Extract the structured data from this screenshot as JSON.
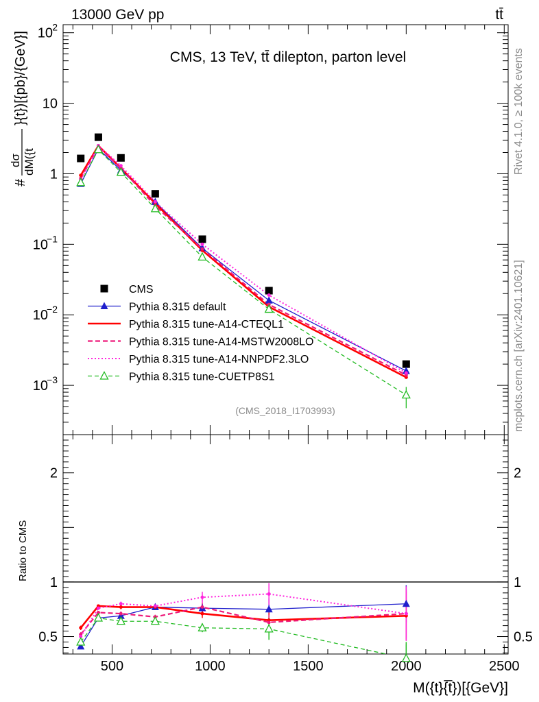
{
  "header": {
    "left": "13000 GeV pp",
    "right": "tt̄"
  },
  "side": {
    "rivet": "Rivet 4.1.0, ≥ 100k events",
    "mcplots": "mcplots.cern.ch [arXiv:2401.10621]"
  },
  "chart_data": {
    "type": "line",
    "title": "CMS, 13 TeV, tt̄ dilepton, parton level",
    "watermark": "(CMS_2018_I1703993)",
    "xlabel": "M({t}{̅t})[{GeV}]",
    "ylabel": "#dσ/dM({t̅}{t})[{pb}/{GeV}]",
    "ylabel_parts": {
      "prefix": "#",
      "num": "dσ",
      "den": "dM({t",
      "den_over": "t",
      "den_tail": "}{t})[{pb}/{GeV}]"
    },
    "ratio_ylabel": "Ratio to CMS",
    "xlim": [
      250,
      2520
    ],
    "ylim": [
      0.0002,
      130
    ],
    "ratio_ylim": [
      0.34,
      2.35
    ],
    "x_ticks": [
      500,
      1000,
      1500,
      2000,
      2500
    ],
    "x_tick_labels": [
      "500",
      "1000",
      "1500",
      "2000",
      "2500"
    ],
    "y_tick_labels": [
      "10^-3",
      "10^-2",
      "10^-1",
      "1",
      "10",
      "10^2"
    ],
    "ratio_ticks": [
      0.5,
      1,
      2
    ],
    "ratio_tick_labels": [
      "0.5",
      "1",
      "2"
    ],
    "x": [
      340,
      430,
      545,
      720,
      960,
      1300,
      2000
    ],
    "series": [
      {
        "name": "CMS",
        "color": "#000000",
        "marker": "square",
        "line": "none",
        "values": [
          1.65,
          3.3,
          1.68,
          0.52,
          0.118,
          0.022,
          0.002
        ]
      },
      {
        "name": "Pythia 8.315 default",
        "color": "#1f1fcc",
        "marker": "triangle-filled",
        "line": "solid",
        "values": [
          0.72,
          2.25,
          1.12,
          0.4,
          0.088,
          0.016,
          0.0016
        ],
        "ratio": [
          0.41,
          0.67,
          0.69,
          0.77,
          0.76,
          0.75,
          0.8
        ],
        "ratio_err": [
          0.015,
          0.01,
          0.01,
          0.015,
          0.04,
          0.1,
          0.17
        ]
      },
      {
        "name": "Pythia 8.315 tune-A14-CTEQL1",
        "color": "#ff0000",
        "marker": "none",
        "line": "solid-thick",
        "values": [
          0.95,
          2.5,
          1.2,
          0.38,
          0.082,
          0.013,
          0.0013
        ],
        "ratio": [
          0.58,
          0.78,
          0.77,
          0.77,
          0.71,
          0.65,
          0.69
        ],
        "ratio_err": [
          0.02,
          0.015,
          0.02,
          0.02,
          0.04,
          0.07,
          0.22
        ]
      },
      {
        "name": "Pythia 8.315 tune-A14-MSTW2008LO",
        "color": "#ee1a7a",
        "marker": "none",
        "line": "dashed",
        "values": [
          0.86,
          2.4,
          1.2,
          0.35,
          0.086,
          0.014,
          0.0014
        ],
        "ratio": [
          0.52,
          0.72,
          0.71,
          0.68,
          0.77,
          0.63,
          0.71
        ],
        "ratio_err": [
          0.02,
          0.015,
          0.02,
          0.02,
          0.04,
          0.07,
          0.22
        ]
      },
      {
        "name": "Pythia 8.315 tune-A14-NNPDF2.3LO",
        "color": "#ff22dd",
        "marker": "none",
        "line": "dotted",
        "values": [
          0.82,
          2.5,
          1.3,
          0.4,
          0.1,
          0.019,
          0.0015
        ],
        "ratio": [
          0.5,
          0.76,
          0.8,
          0.78,
          0.86,
          0.89,
          0.71
        ],
        "ratio_err": [
          0.02,
          0.015,
          0.02,
          0.02,
          0.05,
          0.1,
          0.25
        ]
      },
      {
        "name": "Pythia 8.315 tune-CUETP8S1",
        "color": "#22bb22",
        "marker": "triangle-open",
        "line": "dashed",
        "values": [
          0.75,
          2.2,
          1.05,
          0.32,
          0.066,
          0.012,
          0.00073
        ],
        "ratio": [
          0.45,
          0.67,
          0.64,
          0.64,
          0.58,
          0.57,
          0.3
        ],
        "ratio_err": [
          0.015,
          0.01,
          0.015,
          0.02,
          0.04,
          0.1,
          0.15
        ]
      }
    ]
  }
}
